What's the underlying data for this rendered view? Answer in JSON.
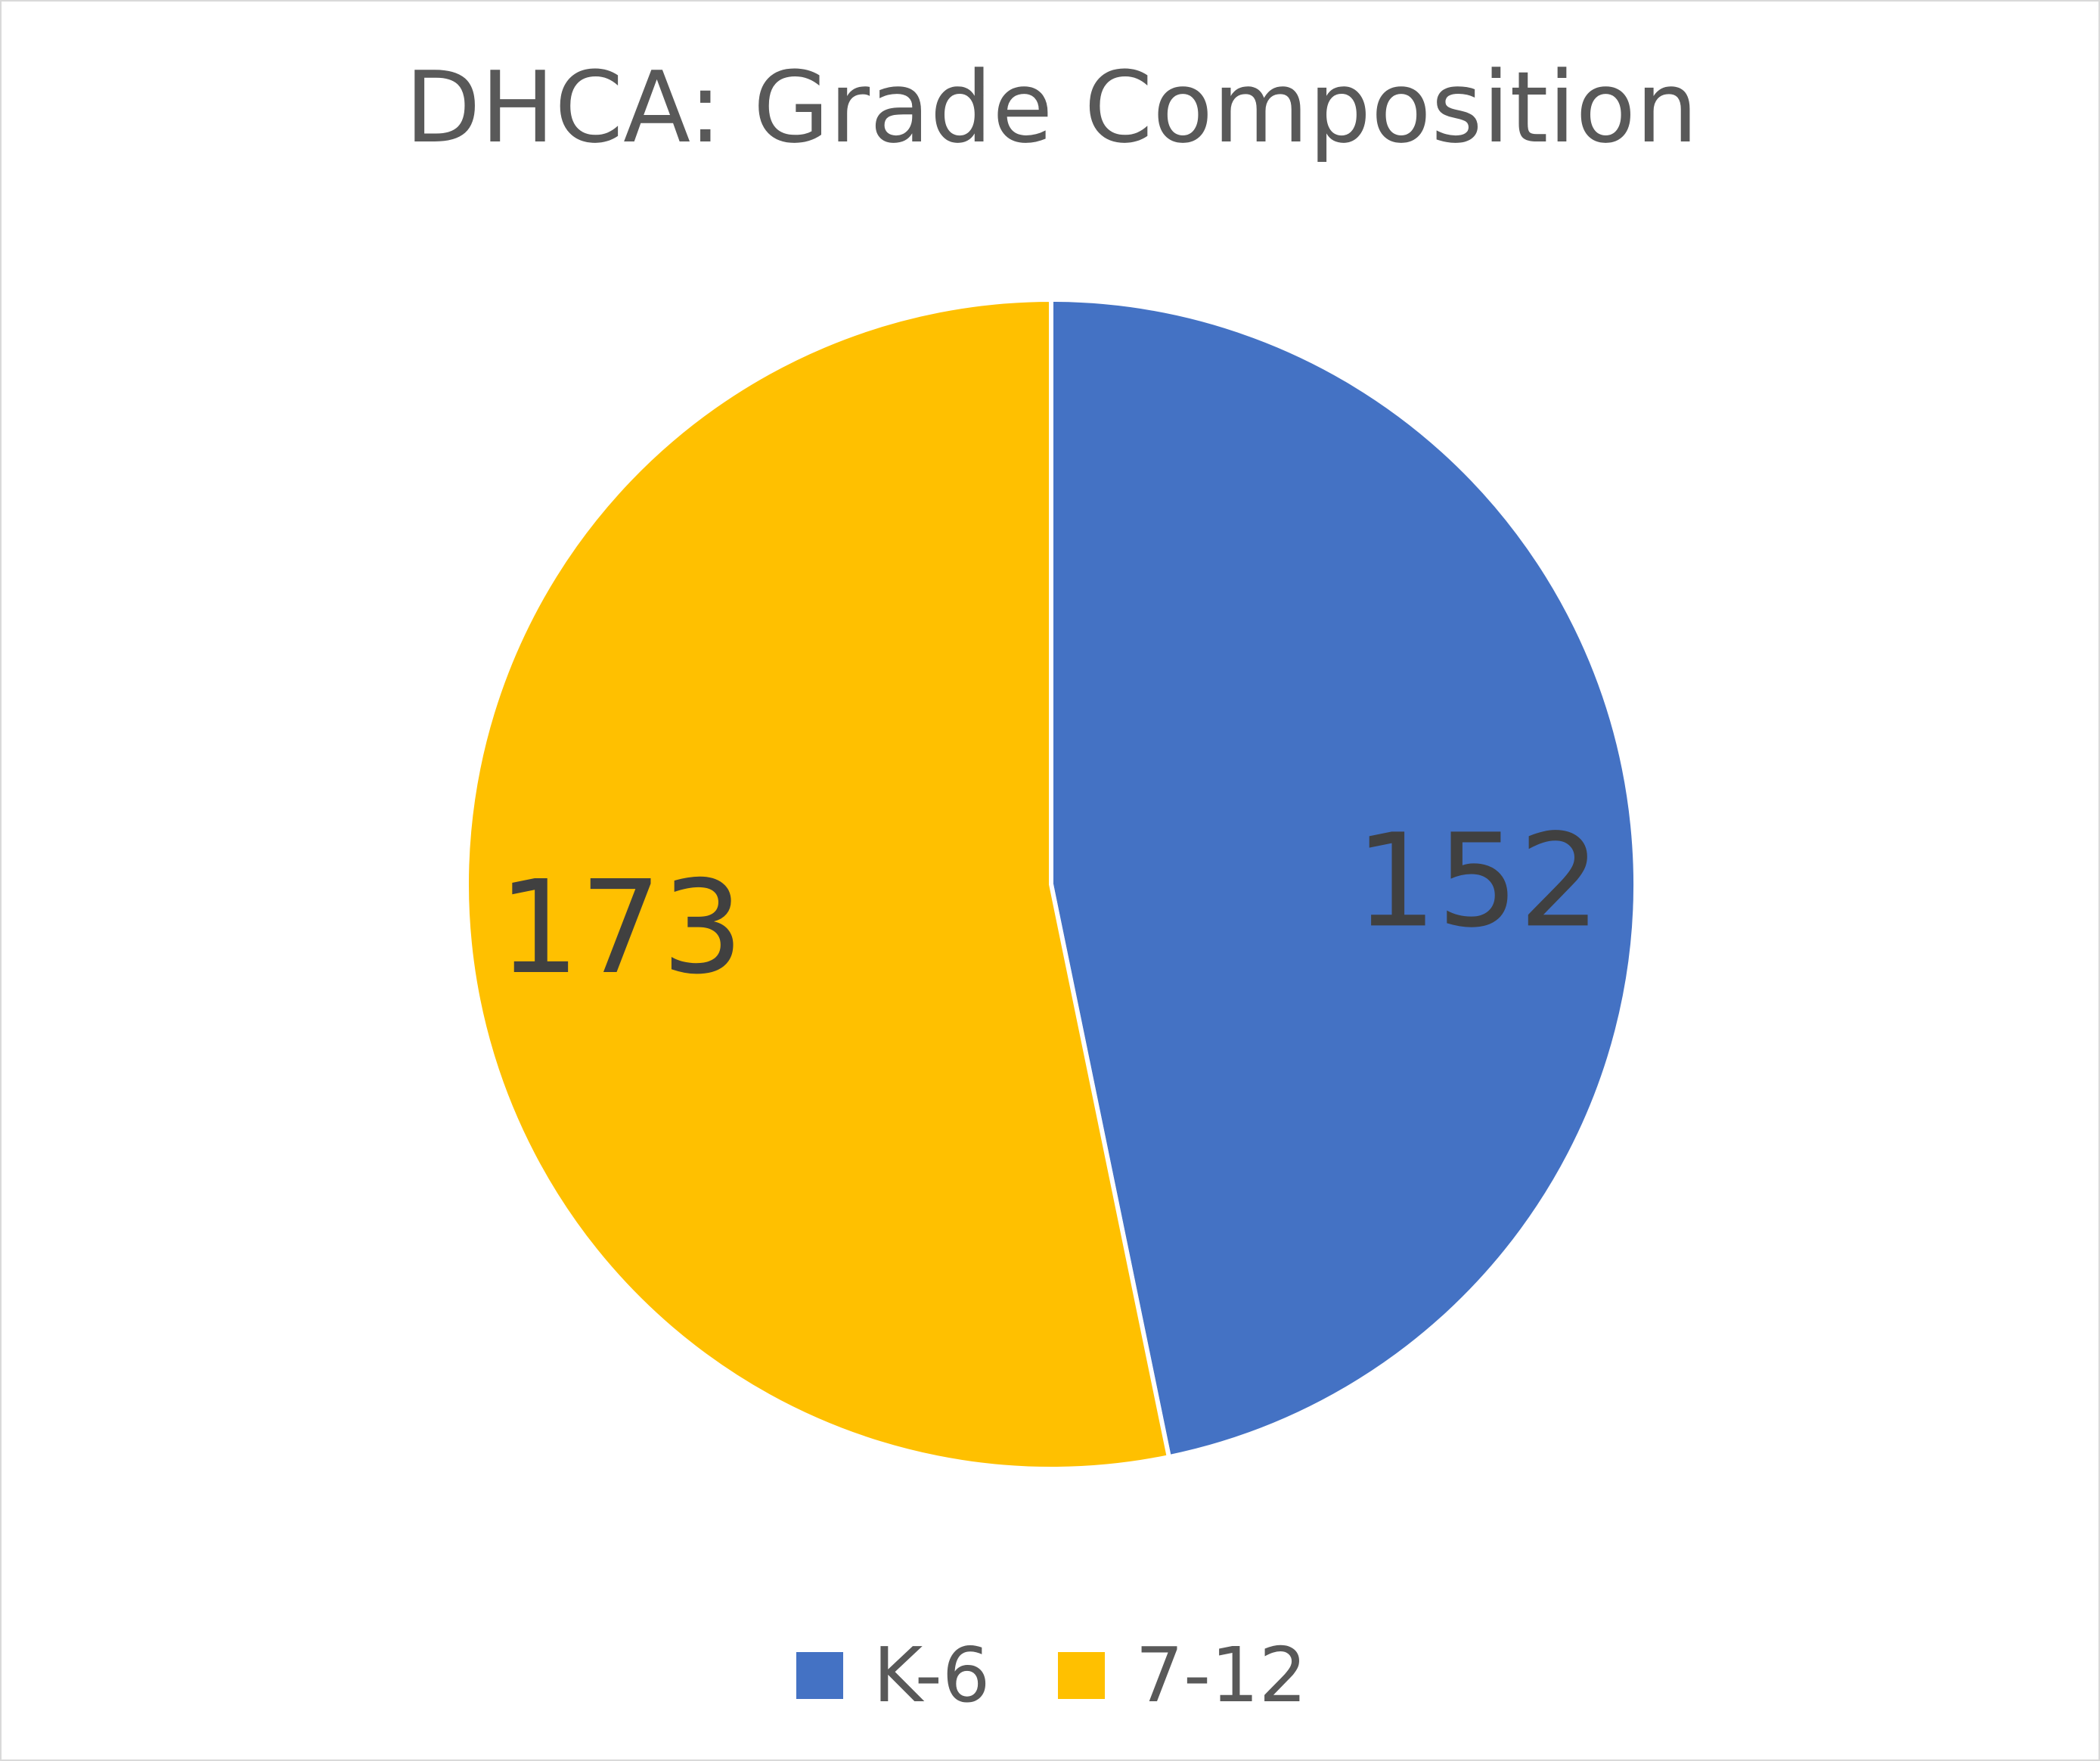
{
  "chart_data": {
    "type": "pie",
    "title": "DHCA: Grade Composition",
    "categories": [
      "K-6",
      "7-12"
    ],
    "values": [
      152,
      173
    ],
    "data_labels": [
      "152",
      "173"
    ],
    "colors": [
      "#4472c4",
      "#ffc000"
    ],
    "legend_position": "bottom",
    "start_angle": "12 o'clock, clockwise"
  }
}
